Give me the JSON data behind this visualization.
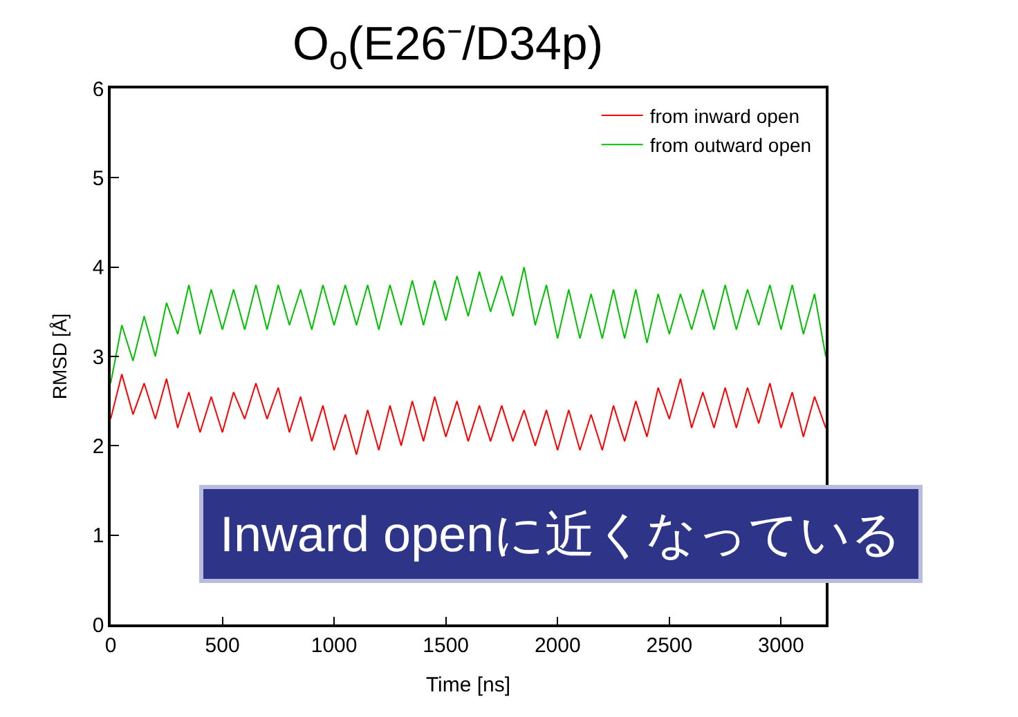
{
  "chart_data": {
    "type": "line",
    "title": "O$_{o}$(E26⁻/D34p)",
    "xlabel": "Time [ns]",
    "ylabel": "RMSD [Å]",
    "x": [
      0,
      50,
      100,
      150,
      200,
      250,
      300,
      350,
      400,
      450,
      500,
      550,
      600,
      650,
      700,
      750,
      800,
      850,
      900,
      950,
      1000,
      1050,
      1100,
      1150,
      1200,
      1250,
      1300,
      1350,
      1400,
      1450,
      1500,
      1550,
      1600,
      1650,
      1700,
      1750,
      1800,
      1850,
      1900,
      1950,
      2000,
      2050,
      2100,
      2150,
      2200,
      2250,
      2300,
      2350,
      2400,
      2450,
      2500,
      2550,
      2600,
      2650,
      2700,
      2750,
      2800,
      2850,
      2900,
      2950,
      3000,
      3050,
      3100,
      3150,
      3200
    ],
    "series": [
      {
        "name": "from inward open",
        "color": "#ff0000",
        "values": [
          2.3,
          2.8,
          2.35,
          2.7,
          2.3,
          2.75,
          2.2,
          2.6,
          2.15,
          2.55,
          2.15,
          2.6,
          2.3,
          2.7,
          2.3,
          2.65,
          2.15,
          2.55,
          2.05,
          2.45,
          1.95,
          2.35,
          1.9,
          2.4,
          1.95,
          2.45,
          2.0,
          2.5,
          2.05,
          2.55,
          2.1,
          2.5,
          2.05,
          2.45,
          2.05,
          2.45,
          2.05,
          2.4,
          2.0,
          2.4,
          1.95,
          2.4,
          1.95,
          2.35,
          1.95,
          2.45,
          2.05,
          2.5,
          2.1,
          2.65,
          2.3,
          2.75,
          2.2,
          2.6,
          2.2,
          2.65,
          2.2,
          2.65,
          2.25,
          2.7,
          2.2,
          2.6,
          2.1,
          2.55,
          2.2
        ]
      },
      {
        "name": "from outward open",
        "color": "#00c000",
        "values": [
          2.7,
          3.35,
          2.95,
          3.45,
          3.0,
          3.6,
          3.25,
          3.8,
          3.25,
          3.75,
          3.3,
          3.75,
          3.3,
          3.8,
          3.3,
          3.8,
          3.35,
          3.75,
          3.3,
          3.8,
          3.35,
          3.8,
          3.35,
          3.8,
          3.3,
          3.8,
          3.35,
          3.85,
          3.35,
          3.85,
          3.4,
          3.9,
          3.45,
          3.95,
          3.5,
          3.9,
          3.45,
          4.0,
          3.35,
          3.8,
          3.2,
          3.75,
          3.2,
          3.7,
          3.2,
          3.75,
          3.2,
          3.75,
          3.15,
          3.7,
          3.25,
          3.7,
          3.3,
          3.75,
          3.3,
          3.8,
          3.3,
          3.75,
          3.35,
          3.8,
          3.3,
          3.8,
          3.25,
          3.7,
          3.0
        ]
      }
    ],
    "xlim": [
      0,
      3200
    ],
    "xticks": [
      0,
      500,
      1000,
      1500,
      2000,
      2500,
      3000
    ],
    "ylim": [
      0,
      6
    ],
    "yticks": [
      0,
      1,
      2,
      3,
      4,
      5,
      6
    ],
    "legend": "top right",
    "marker": "none",
    "line_style": "solid",
    "annotations": [
      "Inward openに近くなっている"
    ]
  }
}
